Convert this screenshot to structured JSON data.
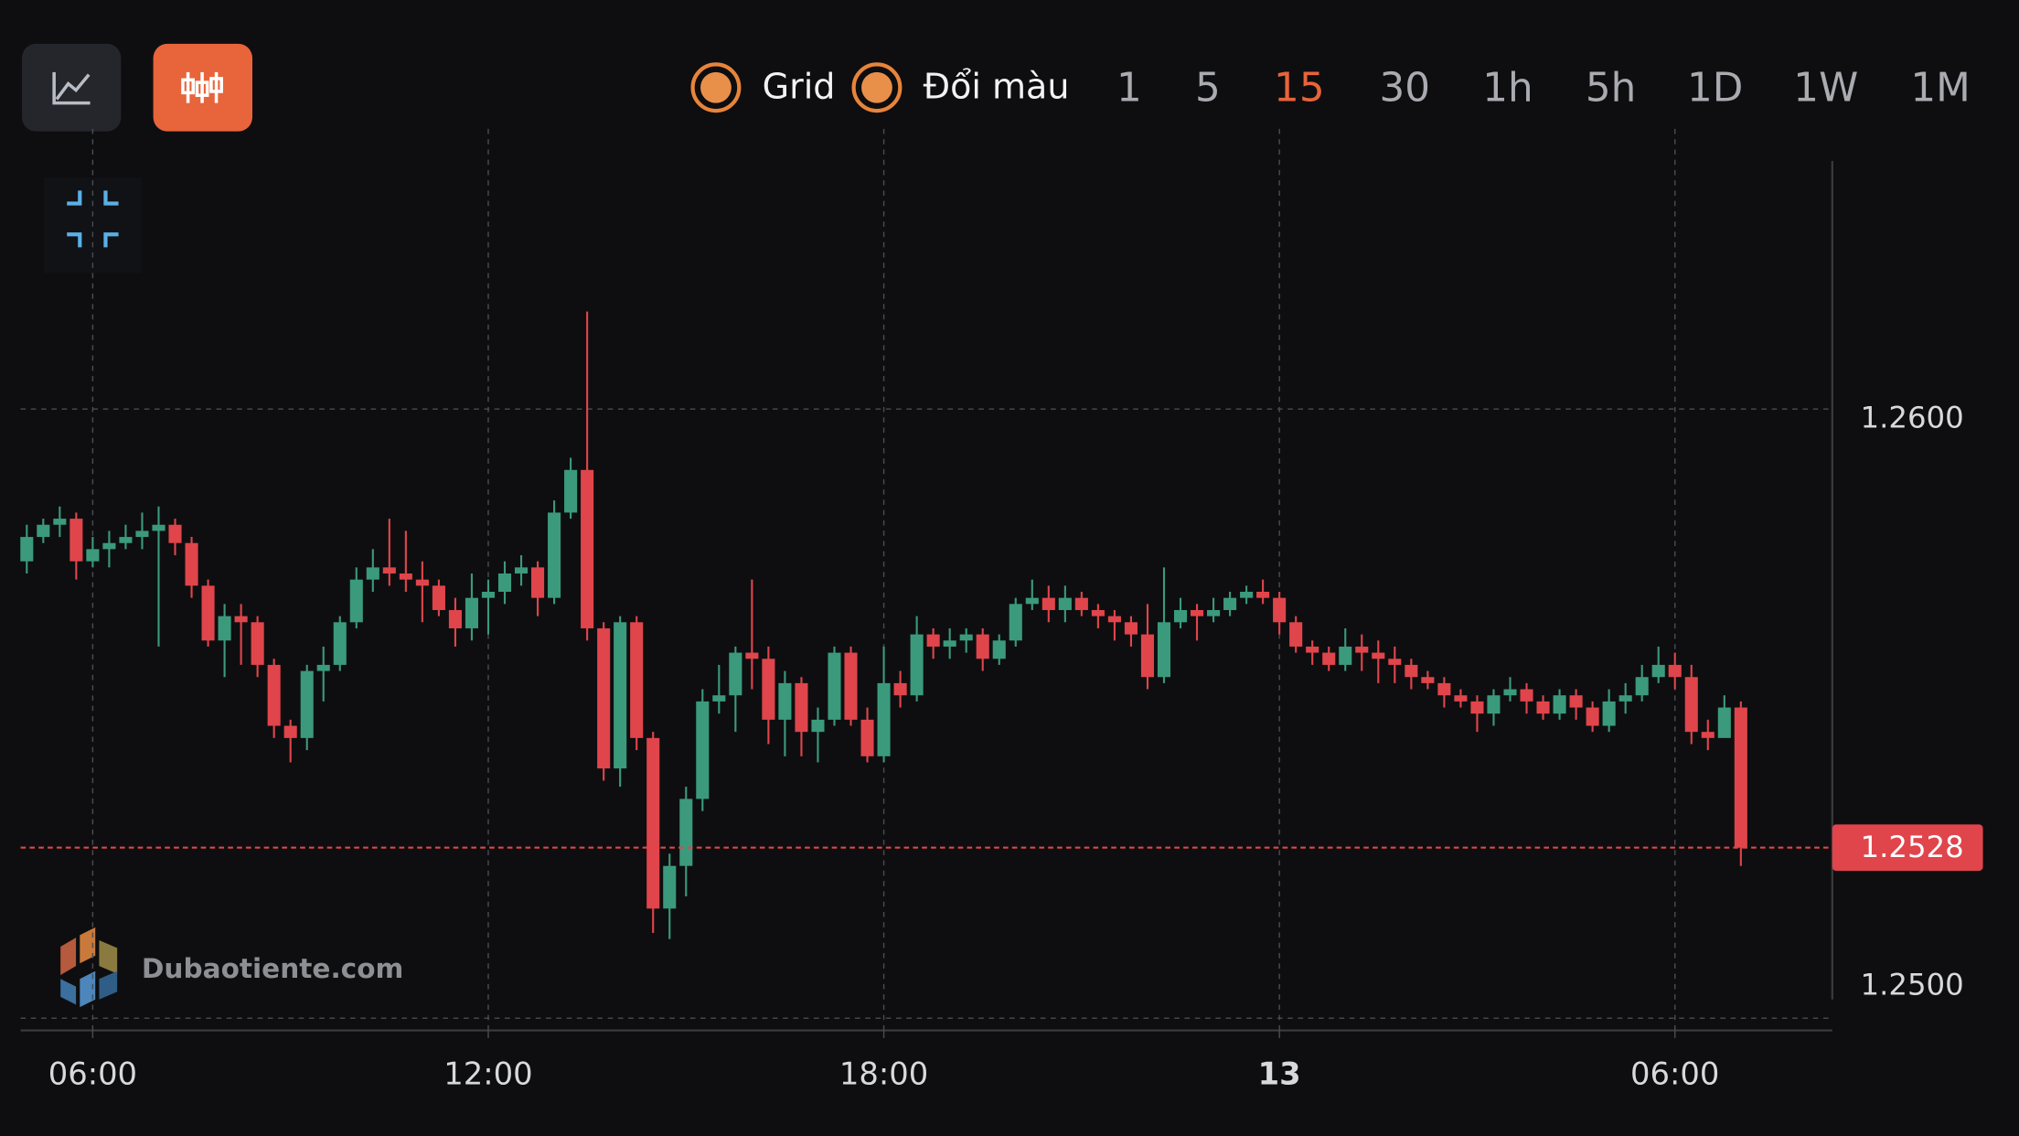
{
  "toolbar": {
    "toggles": [
      "Grid",
      "Đổi màu"
    ],
    "intervals": [
      "1",
      "5",
      "15",
      "30",
      "1h",
      "5h",
      "1D",
      "1W",
      "1M"
    ],
    "active_interval": "15"
  },
  "watermark": "Dubaotiente.com",
  "chart_data": {
    "type": "candlestick",
    "x": [
      "05:00",
      "05:15",
      "05:30",
      "05:45",
      "06:00",
      "06:15",
      "06:30",
      "06:45",
      "07:00",
      "07:15",
      "07:30",
      "07:45",
      "08:00",
      "08:15",
      "08:30",
      "08:45",
      "09:00",
      "09:15",
      "09:30",
      "09:45",
      "10:00",
      "10:15",
      "10:30",
      "10:45",
      "11:00",
      "11:15",
      "11:30",
      "11:45",
      "12:00",
      "12:15",
      "12:30",
      "12:45",
      "13:00",
      "13:15",
      "13:30",
      "13:45",
      "14:00",
      "14:15",
      "14:30",
      "14:45",
      "15:00",
      "15:15",
      "15:30",
      "15:45",
      "16:00",
      "16:15",
      "16:30",
      "16:45",
      "17:00",
      "17:15",
      "17:30",
      "17:45",
      "18:00",
      "18:15",
      "18:30",
      "18:45",
      "19:00",
      "19:15",
      "19:30",
      "19:45",
      "20:00",
      "20:15",
      "20:30",
      "20:45",
      "21:00",
      "21:15",
      "21:30",
      "21:45",
      "22:00",
      "22:15",
      "22:30",
      "22:45",
      "23:00",
      "23:15",
      "23:30",
      "23:45",
      "00:00",
      "00:15",
      "00:30",
      "00:45",
      "01:00",
      "01:15",
      "01:30",
      "01:45",
      "02:00",
      "02:15",
      "02:30",
      "02:45",
      "03:00",
      "03:15",
      "03:30",
      "03:45",
      "04:00",
      "04:15",
      "04:30",
      "04:45",
      "05:00",
      "05:15",
      "05:30",
      "05:45",
      "06:00",
      "06:15",
      "06:30",
      "06:45",
      "07:00"
    ],
    "open": [
      1.2575,
      1.2579,
      1.2581,
      1.2582,
      1.2575,
      1.2577,
      1.2578,
      1.2579,
      1.258,
      1.2581,
      1.2578,
      1.2571,
      1.2562,
      1.2566,
      1.2565,
      1.2558,
      1.2548,
      1.2546,
      1.2557,
      1.2558,
      1.2565,
      1.2572,
      1.2574,
      1.2573,
      1.2572,
      1.2571,
      1.2567,
      1.2564,
      1.2569,
      1.257,
      1.2573,
      1.2574,
      1.2569,
      1.2583,
      1.259,
      1.2564,
      1.2541,
      1.2565,
      1.2546,
      1.2518,
      1.2525,
      1.2536,
      1.2552,
      1.2553,
      1.256,
      1.2559,
      1.2549,
      1.2555,
      1.2547,
      1.2549,
      1.256,
      1.2549,
      1.2543,
      1.2555,
      1.2553,
      1.2563,
      1.2561,
      1.2562,
      1.2563,
      1.2559,
      1.2562,
      1.2568,
      1.2569,
      1.2567,
      1.2569,
      1.2567,
      1.2566,
      1.2565,
      1.2563,
      1.2556,
      1.2565,
      1.2567,
      1.2566,
      1.2567,
      1.2569,
      1.257,
      1.2569,
      1.2565,
      1.2561,
      1.256,
      1.2558,
      1.2561,
      1.256,
      1.2559,
      1.2558,
      1.2556,
      1.2555,
      1.2553,
      1.2552,
      1.255,
      1.2553,
      1.2554,
      1.2552,
      1.255,
      1.2553,
      1.2551,
      1.2548,
      1.2552,
      1.2553,
      1.2556,
      1.2558,
      1.2556,
      1.2547,
      1.2546,
      1.2551
    ],
    "high": [
      1.2581,
      1.2582,
      1.2584,
      1.2583,
      1.2579,
      1.258,
      1.2581,
      1.2583,
      1.2584,
      1.2582,
      1.2579,
      1.2572,
      1.2568,
      1.2568,
      1.2566,
      1.2559,
      1.2549,
      1.2558,
      1.2561,
      1.2566,
      1.2574,
      1.2577,
      1.2582,
      1.258,
      1.2575,
      1.2572,
      1.2569,
      1.2573,
      1.2572,
      1.2575,
      1.2576,
      1.2575,
      1.2585,
      1.2592,
      1.2616,
      1.2565,
      1.2566,
      1.2566,
      1.2547,
      1.2527,
      1.2538,
      1.2554,
      1.2558,
      1.2561,
      1.2572,
      1.2561,
      1.2557,
      1.2556,
      1.2551,
      1.2561,
      1.2561,
      1.2551,
      1.2561,
      1.2557,
      1.2566,
      1.2564,
      1.2564,
      1.2564,
      1.2564,
      1.2563,
      1.2569,
      1.2572,
      1.2571,
      1.2571,
      1.257,
      1.2568,
      1.2567,
      1.2566,
      1.2568,
      1.2574,
      1.2569,
      1.2568,
      1.2569,
      1.257,
      1.2571,
      1.2572,
      1.257,
      1.2566,
      1.2562,
      1.2561,
      1.2564,
      1.2563,
      1.2562,
      1.2561,
      1.2559,
      1.2557,
      1.2556,
      1.2554,
      1.2553,
      1.2554,
      1.2556,
      1.2555,
      1.2553,
      1.2554,
      1.2554,
      1.2552,
      1.2554,
      1.2555,
      1.2558,
      1.2561,
      1.256,
      1.2558,
      1.2549,
      1.2553,
      1.2552
    ],
    "low": [
      1.2573,
      1.2578,
      1.2579,
      1.2572,
      1.2574,
      1.2574,
      1.2577,
      1.2577,
      1.2561,
      1.2576,
      1.2569,
      1.2561,
      1.2556,
      1.2558,
      1.2556,
      1.2546,
      1.2542,
      1.2544,
      1.2552,
      1.2557,
      1.2564,
      1.257,
      1.2571,
      1.257,
      1.2565,
      1.2566,
      1.2561,
      1.2562,
      1.2563,
      1.2568,
      1.2571,
      1.2566,
      1.2568,
      1.2582,
      1.2562,
      1.2539,
      1.2538,
      1.2544,
      1.2514,
      1.2513,
      1.252,
      1.2534,
      1.255,
      1.2547,
      1.2554,
      1.2545,
      1.2543,
      1.2543,
      1.2542,
      1.2548,
      1.2548,
      1.2542,
      1.2542,
      1.2551,
      1.2552,
      1.2559,
      1.2559,
      1.256,
      1.2557,
      1.2558,
      1.2561,
      1.2567,
      1.2565,
      1.2565,
      1.2566,
      1.2564,
      1.2562,
      1.2561,
      1.2554,
      1.2555,
      1.2564,
      1.2562,
      1.2565,
      1.2566,
      1.2568,
      1.2568,
      1.2563,
      1.256,
      1.2558,
      1.2557,
      1.2557,
      1.2557,
      1.2555,
      1.2555,
      1.2554,
      1.2554,
      1.2551,
      1.2551,
      1.2547,
      1.2548,
      1.2552,
      1.255,
      1.2549,
      1.2549,
      1.2549,
      1.2547,
      1.2547,
      1.255,
      1.2552,
      1.2555,
      1.2554,
      1.2545,
      1.2544,
      1.2547,
      1.2525
    ],
    "close": [
      1.2579,
      1.2581,
      1.2582,
      1.2575,
      1.2577,
      1.2578,
      1.2579,
      1.258,
      1.2581,
      1.2578,
      1.2571,
      1.2562,
      1.2566,
      1.2565,
      1.2558,
      1.2548,
      1.2546,
      1.2557,
      1.2558,
      1.2565,
      1.2572,
      1.2574,
      1.2573,
      1.2572,
      1.2571,
      1.2567,
      1.2564,
      1.2569,
      1.257,
      1.2573,
      1.2574,
      1.2569,
      1.2583,
      1.259,
      1.2564,
      1.2541,
      1.2565,
      1.2546,
      1.2518,
      1.2525,
      1.2536,
      1.2552,
      1.2553,
      1.256,
      1.2559,
      1.2549,
      1.2555,
      1.2547,
      1.2549,
      1.256,
      1.2549,
      1.2543,
      1.2555,
      1.2553,
      1.2563,
      1.2561,
      1.2562,
      1.2563,
      1.2559,
      1.2562,
      1.2568,
      1.2569,
      1.2567,
      1.2569,
      1.2567,
      1.2566,
      1.2565,
      1.2563,
      1.2556,
      1.2565,
      1.2567,
      1.2566,
      1.2567,
      1.2569,
      1.257,
      1.2569,
      1.2565,
      1.2561,
      1.256,
      1.2558,
      1.2561,
      1.256,
      1.2559,
      1.2558,
      1.2556,
      1.2555,
      1.2553,
      1.2552,
      1.255,
      1.2553,
      1.2554,
      1.2552,
      1.255,
      1.2553,
      1.2551,
      1.2548,
      1.2552,
      1.2553,
      1.2556,
      1.2558,
      1.2556,
      1.2547,
      1.2546,
      1.2551,
      1.2528
    ],
    "up_color": "#3b9a7c",
    "down_color": "#e0454b",
    "ylim": [
      1.2498,
      1.2646
    ],
    "yticks": [
      {
        "value": 1.25,
        "label": "1.2500"
      },
      {
        "value": 1.26,
        "label": "1.2600"
      }
    ],
    "xticks": [
      {
        "value": "06:00",
        "label": "06:00"
      },
      {
        "value": "12:00",
        "label": "12:00"
      },
      {
        "value": "18:00",
        "label": "18:00"
      },
      {
        "value": "00:00",
        "label": "13"
      },
      {
        "value": "06:00",
        "label": "06:00"
      }
    ],
    "last_price": {
      "value": 1.2528,
      "label": "1.2528"
    },
    "grid": true
  }
}
